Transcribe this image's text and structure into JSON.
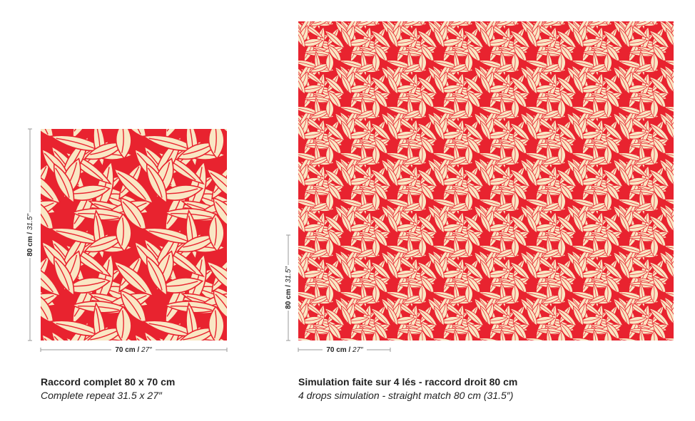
{
  "left": {
    "height": {
      "metric": "80 cm /",
      "imperial": "31.5″"
    },
    "width": {
      "metric": "70 cm /",
      "imperial": "27″"
    },
    "caption": {
      "title": "Raccord complet 80 x 70 cm",
      "subtitle": "Complete repeat 31.5 x 27″"
    }
  },
  "right": {
    "height": {
      "metric": "80 cm /",
      "imperial": "31.5″"
    },
    "width": {
      "metric": "70 cm /",
      "imperial": "27″"
    },
    "caption": {
      "title": "Simulation faite sur 4 lés - raccord droit 80 cm",
      "subtitle": "4 drops simulation - straight match 80 cm (31.5″)"
    }
  }
}
